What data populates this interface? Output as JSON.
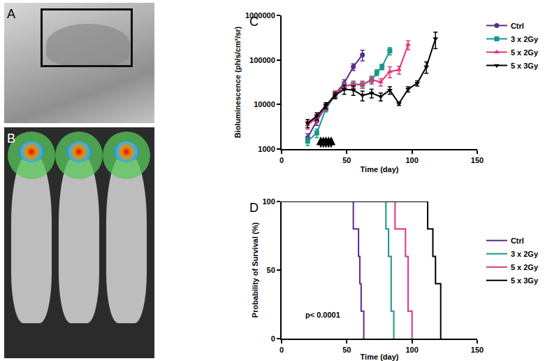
{
  "chart_data": [
    {
      "type": "line",
      "panel": "C",
      "xlabel": "Time (day)",
      "ylabel": "Bioluminescence (ph/s/cm²/sr)",
      "log": "y",
      "grid": false,
      "legend": "right",
      "xlim": [
        0,
        150
      ],
      "xticks": [
        0,
        50,
        100,
        150
      ],
      "ylim": [
        1000,
        1000000
      ],
      "yticks": [
        1000,
        10000,
        100000,
        1000000
      ],
      "treatment_days": [
        30,
        32,
        34,
        36,
        38
      ],
      "series": [
        {
          "name": "Ctrl",
          "color": "#5b2a8c",
          "marker": "circle",
          "x": [
            20,
            27,
            34,
            41,
            48,
            55,
            62
          ],
          "values": [
            1800,
            4300,
            9000,
            17000,
            30000,
            70000,
            130000
          ],
          "errors": [
            400,
            900,
            1500,
            3000,
            6000,
            12000,
            35000
          ]
        },
        {
          "name": "3 x 2Gy",
          "color": "#16988c",
          "marker": "square",
          "x": [
            20,
            27,
            34,
            41,
            48,
            55,
            62,
            69,
            73,
            77,
            83
          ],
          "values": [
            1500,
            2300,
            8000,
            16000,
            26000,
            28000,
            28000,
            35000,
            52000,
            70000,
            160000
          ],
          "errors": [
            300,
            500,
            1200,
            2500,
            5000,
            5000,
            5000,
            6000,
            8000,
            10000,
            30000
          ]
        },
        {
          "name": "5 x 2Gy",
          "color": "#e5337e",
          "marker": "triangle-up",
          "x": [
            20,
            27,
            34,
            41,
            48,
            55,
            62,
            69,
            76,
            83,
            90,
            97
          ],
          "values": [
            3500,
            5000,
            9000,
            17000,
            26000,
            28000,
            28000,
            36000,
            32000,
            55000,
            60000,
            220000
          ],
          "errors": [
            700,
            1000,
            1500,
            3000,
            5000,
            5000,
            5000,
            7000,
            6000,
            15000,
            12000,
            50000
          ]
        },
        {
          "name": "5 x 3Gy",
          "color": "#000000",
          "marker": "triangle-down",
          "x": [
            20,
            27,
            34,
            41,
            48,
            55,
            62,
            69,
            76,
            83,
            90,
            97,
            104,
            111,
            118
          ],
          "values": [
            3800,
            5500,
            9500,
            16000,
            22000,
            21000,
            16000,
            18000,
            15000,
            21000,
            10500,
            22000,
            30000,
            70000,
            300000
          ],
          "errors": [
            800,
            1000,
            1500,
            2500,
            5000,
            5000,
            4000,
            4000,
            3000,
            4000,
            1000,
            3000,
            4000,
            20000,
            120000
          ]
        }
      ]
    },
    {
      "type": "line",
      "panel": "D",
      "line_style": "step",
      "xlabel": "Time (day)",
      "ylabel": "Probability of Survival (%)",
      "grid": false,
      "legend": "right",
      "xlim": [
        0,
        150
      ],
      "xticks": [
        0,
        50,
        100,
        150
      ],
      "ylim": [
        0,
        100
      ],
      "yticks": [
        0,
        50,
        100
      ],
      "annotations": [
        "p< 0.0001"
      ],
      "series": [
        {
          "name": "Ctrl",
          "color": "#5b2a8c",
          "x": [
            0,
            55,
            59,
            60,
            61,
            63
          ],
          "values": [
            100,
            80,
            60,
            40,
            20,
            0
          ]
        },
        {
          "name": "3 x 2Gy",
          "color": "#16988c",
          "x": [
            0,
            80,
            82,
            84,
            86
          ],
          "values": [
            100,
            80,
            60,
            20,
            0
          ]
        },
        {
          "name": "5 x 2Gy",
          "color": "#e5337e",
          "x": [
            0,
            87,
            95,
            97,
            100
          ],
          "values": [
            100,
            80,
            60,
            20,
            0
          ]
        },
        {
          "name": "5 x 3Gy",
          "color": "#000000",
          "x": [
            0,
            112,
            116,
            118,
            122
          ],
          "values": [
            100,
            80,
            60,
            40,
            0
          ]
        }
      ]
    }
  ],
  "image_panels": [
    {
      "label": "A"
    },
    {
      "label": "B"
    }
  ]
}
